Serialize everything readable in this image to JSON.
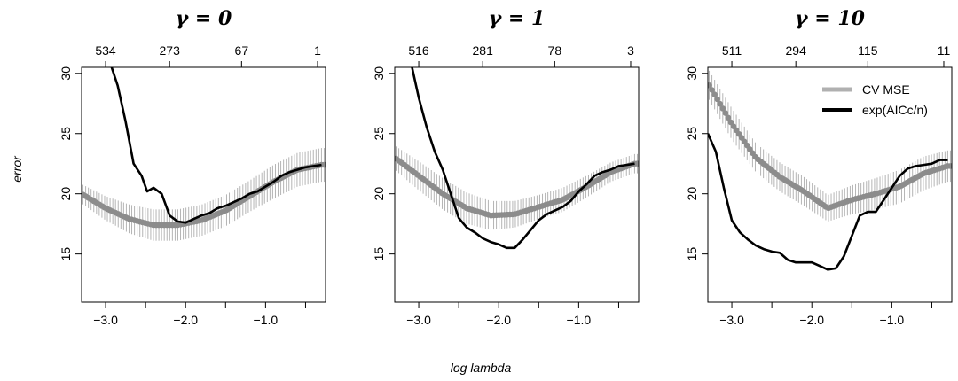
{
  "figure": {
    "xlabel": "log lambda",
    "ylabel": "error",
    "colors": {
      "cv": "#8c8c8c",
      "cv_bars": "#b4b4b4",
      "aic": "#000000",
      "legend_cv": "#b0b0b0"
    }
  },
  "legend": {
    "placement": "top-right",
    "items": [
      "CV MSE",
      "exp(AICc/n)"
    ]
  },
  "chart_data": [
    {
      "type": "line",
      "title": "γ = 0",
      "xlim": [
        -3.3,
        -0.25
      ],
      "ylim": [
        11,
        30.5
      ],
      "xticks": [
        -3.0,
        -2.0,
        -1.0
      ],
      "xtick_labels": [
        "−3.0",
        "−2.0",
        "−1.0"
      ],
      "yticks": [
        15,
        20,
        25,
        30
      ],
      "top_axis_ticks": [
        -3.0,
        -2.2,
        -1.3,
        -0.35
      ],
      "top_axis_labels": [
        "534",
        "273",
        "67",
        "1"
      ],
      "series": [
        {
          "name": "CV MSE",
          "x": [
            -3.3,
            -3.0,
            -2.7,
            -2.4,
            -2.1,
            -1.8,
            -1.5,
            -1.2,
            -0.9,
            -0.6,
            -0.3
          ],
          "y": [
            20.0,
            18.8,
            17.9,
            17.4,
            17.4,
            17.8,
            18.6,
            19.8,
            21.0,
            22.0,
            22.4
          ],
          "err": [
            0.8,
            1.0,
            1.2,
            1.3,
            1.3,
            1.3,
            1.3,
            1.3,
            1.4,
            1.4,
            1.4
          ]
        },
        {
          "name": "exp(AICc/n)",
          "x": [
            -2.95,
            -2.85,
            -2.75,
            -2.65,
            -2.55,
            -2.48,
            -2.4,
            -2.3,
            -2.2,
            -2.1,
            -2.0,
            -1.9,
            -1.8,
            -1.7,
            -1.6,
            -1.5,
            -1.4,
            -1.3,
            -1.2,
            -1.1,
            -1.0,
            -0.9,
            -0.8,
            -0.7,
            -0.6,
            -0.5,
            -0.4,
            -0.3
          ],
          "y": [
            31.0,
            29.0,
            26.0,
            22.5,
            21.5,
            20.2,
            20.5,
            20.0,
            18.2,
            17.7,
            17.6,
            17.9,
            18.2,
            18.4,
            18.8,
            19.0,
            19.3,
            19.6,
            20.0,
            20.2,
            20.6,
            21.0,
            21.5,
            21.8,
            22.0,
            22.2,
            22.3,
            22.4
          ]
        }
      ]
    },
    {
      "type": "line",
      "title": "γ = 1",
      "xlim": [
        -3.3,
        -0.25
      ],
      "ylim": [
        11,
        30.5
      ],
      "xticks": [
        -3.0,
        -2.0,
        -1.0
      ],
      "xtick_labels": [
        "−3.0",
        "−2.0",
        "−1.0"
      ],
      "yticks": [
        15,
        20,
        25,
        30
      ],
      "top_axis_ticks": [
        -3.0,
        -2.2,
        -1.3,
        -0.35
      ],
      "top_axis_labels": [
        "516",
        "281",
        "78",
        "3"
      ],
      "series": [
        {
          "name": "CV MSE",
          "x": [
            -3.3,
            -3.0,
            -2.7,
            -2.4,
            -2.1,
            -1.8,
            -1.5,
            -1.2,
            -0.9,
            -0.6,
            -0.3
          ],
          "y": [
            23.0,
            21.5,
            20.0,
            18.8,
            18.2,
            18.3,
            18.9,
            19.5,
            20.6,
            21.8,
            22.5
          ],
          "err": [
            1.0,
            1.2,
            1.3,
            1.3,
            1.2,
            1.1,
            1.0,
            1.0,
            0.9,
            0.8,
            0.8
          ]
        },
        {
          "name": "exp(AICc/n)",
          "x": [
            -3.1,
            -3.0,
            -2.9,
            -2.8,
            -2.7,
            -2.6,
            -2.5,
            -2.4,
            -2.3,
            -2.2,
            -2.1,
            -2.0,
            -1.9,
            -1.8,
            -1.7,
            -1.6,
            -1.5,
            -1.4,
            -1.3,
            -1.2,
            -1.1,
            -1.0,
            -0.9,
            -0.8,
            -0.7,
            -0.6,
            -0.5,
            -0.4,
            -0.3
          ],
          "y": [
            31.0,
            28.0,
            25.5,
            23.5,
            22.0,
            20.0,
            18.0,
            17.2,
            16.8,
            16.3,
            16.0,
            15.8,
            15.5,
            15.5,
            16.2,
            17.0,
            17.8,
            18.3,
            18.6,
            18.9,
            19.4,
            20.2,
            20.8,
            21.5,
            21.8,
            22.0,
            22.3,
            22.4,
            22.5
          ]
        }
      ]
    },
    {
      "type": "line",
      "title": "γ = 10",
      "xlim": [
        -3.3,
        -0.25
      ],
      "ylim": [
        11,
        30.5
      ],
      "xticks": [
        -3.0,
        -2.0,
        -1.0
      ],
      "xtick_labels": [
        "−3.0",
        "−2.0",
        "−1.0"
      ],
      "yticks": [
        15,
        20,
        25,
        30
      ],
      "top_axis_ticks": [
        -3.0,
        -2.2,
        -1.3,
        -0.35
      ],
      "top_axis_labels": [
        "511",
        "294",
        "115",
        "11"
      ],
      "series": [
        {
          "name": "CV MSE",
          "x": [
            -3.3,
            -3.0,
            -2.7,
            -2.4,
            -2.1,
            -1.8,
            -1.5,
            -1.2,
            -0.9,
            -0.6,
            -0.3
          ],
          "y": [
            29.2,
            25.8,
            23.0,
            21.4,
            20.2,
            18.8,
            19.5,
            20.0,
            20.6,
            21.7,
            22.3
          ],
          "err": [
            1.2,
            1.3,
            1.2,
            1.2,
            1.2,
            1.1,
            1.2,
            1.3,
            1.4,
            1.4,
            1.3
          ]
        },
        {
          "name": "exp(AICc/n)",
          "x": [
            -3.3,
            -3.2,
            -3.1,
            -3.0,
            -2.9,
            -2.8,
            -2.7,
            -2.6,
            -2.5,
            -2.4,
            -2.3,
            -2.2,
            -2.1,
            -2.0,
            -1.9,
            -1.8,
            -1.7,
            -1.6,
            -1.5,
            -1.4,
            -1.3,
            -1.2,
            -1.1,
            -1.0,
            -0.9,
            -0.8,
            -0.7,
            -0.6,
            -0.5,
            -0.4,
            -0.3
          ],
          "y": [
            25.0,
            23.5,
            20.5,
            17.8,
            16.8,
            16.2,
            15.7,
            15.4,
            15.2,
            15.1,
            14.5,
            14.3,
            14.3,
            14.3,
            14.0,
            13.7,
            13.8,
            14.8,
            16.5,
            18.2,
            18.5,
            18.5,
            19.5,
            20.5,
            21.5,
            22.1,
            22.3,
            22.4,
            22.5,
            22.8,
            22.8
          ]
        }
      ]
    }
  ]
}
